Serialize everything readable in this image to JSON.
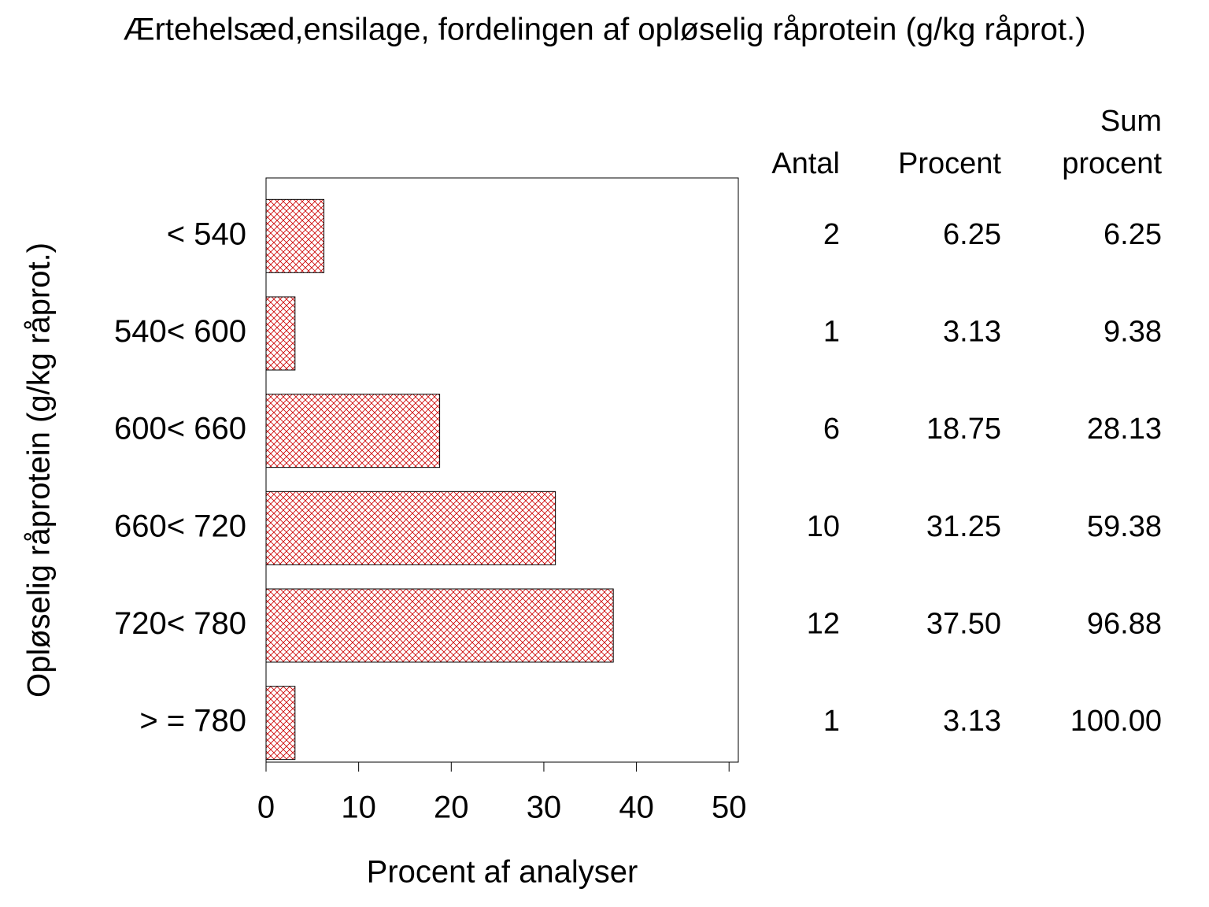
{
  "chart_data": {
    "type": "bar",
    "orientation": "horizontal",
    "title": "Ærtehelsæd,ensilage,  fordelingen af opløselig råprotein (g/kg råprot.)",
    "xlabel": "Procent af analyser",
    "ylabel": "Opløselig råprotein (g/kg råprot.)",
    "categories": [
      "< 540",
      "540< 600",
      "600< 660",
      "660< 720",
      "720< 780",
      "> = 780"
    ],
    "values": [
      6.25,
      3.13,
      18.75,
      31.25,
      37.5,
      3.13
    ],
    "value_labels": [
      "6.25",
      "3.13",
      "18.75",
      "31.25",
      "37.50",
      "3.13"
    ],
    "color": "#cc0000",
    "pattern": "crosshatch",
    "xlim": [
      0,
      51
    ],
    "xticks": [
      0,
      10,
      20,
      30,
      40,
      50
    ],
    "table": {
      "headers": [
        [
          "Antal"
        ],
        [
          "Procent"
        ],
        [
          "Sum",
          "procent"
        ]
      ],
      "counts": [
        2,
        1,
        6,
        10,
        12,
        1
      ],
      "cumulative": [
        "6.25",
        "9.38",
        "28.13",
        "59.38",
        "96.88",
        "100.00"
      ]
    }
  }
}
